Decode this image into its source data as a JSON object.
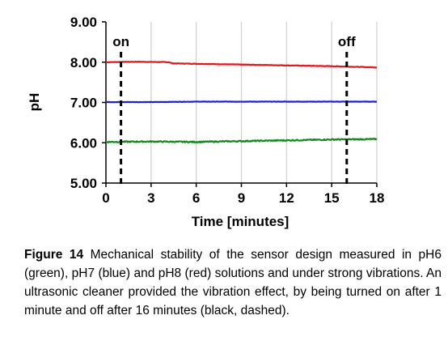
{
  "chart_data": {
    "type": "line",
    "title": "",
    "xlabel": "Time [minutes]",
    "ylabel": "pH",
    "xlim": [
      0,
      18
    ],
    "ylim": [
      5.0,
      9.0
    ],
    "x_ticks": [
      0,
      3,
      6,
      9,
      12,
      15,
      18
    ],
    "y_ticks": [
      5.0,
      6.0,
      7.0,
      8.0,
      9.0
    ],
    "x_tick_labels": [
      "0",
      "3",
      "6",
      "9",
      "12",
      "15",
      "18"
    ],
    "y_tick_labels": [
      "5.00",
      "6.00",
      "7.00",
      "8.00",
      "9.00"
    ],
    "grid": {
      "vertical": true,
      "horizontal": false
    },
    "series": [
      {
        "color": "#e8141b",
        "points": [
          [
            0,
            8.0
          ],
          [
            2,
            8.01
          ],
          [
            4.2,
            8.0
          ],
          [
            4.4,
            7.97
          ],
          [
            6,
            7.96
          ],
          [
            9,
            7.94
          ],
          [
            12,
            7.92
          ],
          [
            15,
            7.9
          ],
          [
            18,
            7.87
          ]
        ]
      },
      {
        "color": "#1f1fd0",
        "points": [
          [
            0,
            7.01
          ],
          [
            3,
            7.01
          ],
          [
            6,
            7.02
          ],
          [
            9,
            7.02
          ],
          [
            12,
            7.02
          ],
          [
            15,
            7.02
          ],
          [
            18,
            7.02
          ]
        ]
      },
      {
        "color": "#138a1c",
        "points": [
          [
            0,
            6.02
          ],
          [
            3,
            6.03
          ],
          [
            6,
            6.02
          ],
          [
            9,
            6.04
          ],
          [
            12,
            6.06
          ],
          [
            15,
            6.08
          ],
          [
            18,
            6.09
          ]
        ]
      }
    ],
    "annotations": [
      {
        "text": "on",
        "x": 1,
        "color": "#000000",
        "style": "dashed"
      },
      {
        "text": "off",
        "x": 16,
        "color": "#000000",
        "style": "dashed"
      }
    ]
  },
  "caption": {
    "label": "Figure 14",
    "text": " Mechanical stability of the sensor design measured in pH6 (green), pH7 (blue) and pH8 (red) solutions and under strong vibrations. An ultrasonic cleaner provided the vibration effect, by being turned on after 1 minute and off after 16 minutes (black, dashed)."
  }
}
